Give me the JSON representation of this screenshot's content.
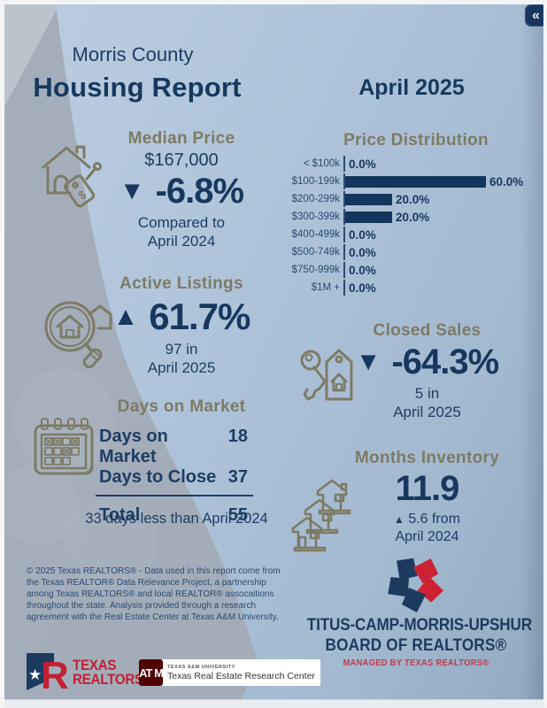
{
  "header": {
    "county": "Morris County",
    "report_title": "Housing Report",
    "period": "April 2025",
    "collapse_icon": "«"
  },
  "median_price": {
    "title": "Median Price",
    "value": "$167,000",
    "arrow": "▼",
    "change": "-6.8%",
    "note_line1": "Compared to",
    "note_line2": "April 2024"
  },
  "chart_data": {
    "type": "bar",
    "orientation": "horizontal",
    "title": "Price Distribution",
    "categories": [
      "< $100k",
      "$100-199k",
      "$200-299k",
      "$300-399k",
      "$400-499k",
      "$500-749k",
      "$750-999k",
      "$1M +"
    ],
    "values": [
      0.0,
      60.0,
      20.0,
      20.0,
      0.0,
      0.0,
      0.0,
      0.0
    ],
    "value_labels": [
      "0.0%",
      "60.0%",
      "20.0%",
      "20.0%",
      "0.0%",
      "0.0%",
      "0.0%",
      "0.0%"
    ],
    "xlim": [
      0,
      65
    ],
    "grid": false,
    "legend": false,
    "bar_color": "#14355c"
  },
  "active_listings": {
    "title": "Active Listings",
    "arrow": "▲",
    "change": "61.7%",
    "note_line1": "97 in",
    "note_line2": "April 2025"
  },
  "closed_sales": {
    "title": "Closed Sales",
    "arrow": "▼",
    "change": "-64.3%",
    "note_line1": "5 in",
    "note_line2": "April 2025"
  },
  "days_on_market": {
    "title": "Days on Market",
    "rows": [
      {
        "label": "Days on Market",
        "value": "18"
      },
      {
        "label": "Days to Close",
        "value": "37"
      }
    ],
    "total_label": "Total",
    "total_value": "55",
    "note": "33 days less than April 2024"
  },
  "months_inventory": {
    "title": "Months Inventory",
    "value": "11.9",
    "change_arrow": "▲",
    "change_text": "5.6 from",
    "change_line2": "April 2024"
  },
  "disclaimer": "© 2025 Texas REALTORS® - Data used in this report come from the Texas REALTOR® Data Relevance Project, a partnership among Texas REALTORS® and local REALTOR® assocaitions throughout the state. Analysis provided through a research agreement with the Real Estate Center at Texas A&M University.",
  "logos": {
    "texas_realtors": {
      "line1": "TEXAS",
      "line2": "REALTORS®"
    },
    "tamu": {
      "monogram": "AT M",
      "line1": "TEXAS A&M UNIVERSITY",
      "line2": "Texas Real Estate Research Center"
    },
    "board": {
      "line1": "TITUS-CAMP-MORRIS-UPSHUR",
      "line2": "BOARD OF REALTORS®",
      "line3": "MANAGED BY TEXAS REALTORS®"
    }
  },
  "colors": {
    "navy": "#17375e",
    "bar_navy": "#14355c",
    "olive": "#7d7b65",
    "realtor_red": "#c22033",
    "tamu_maroon": "#500000",
    "board_red": "#c13a4b"
  }
}
